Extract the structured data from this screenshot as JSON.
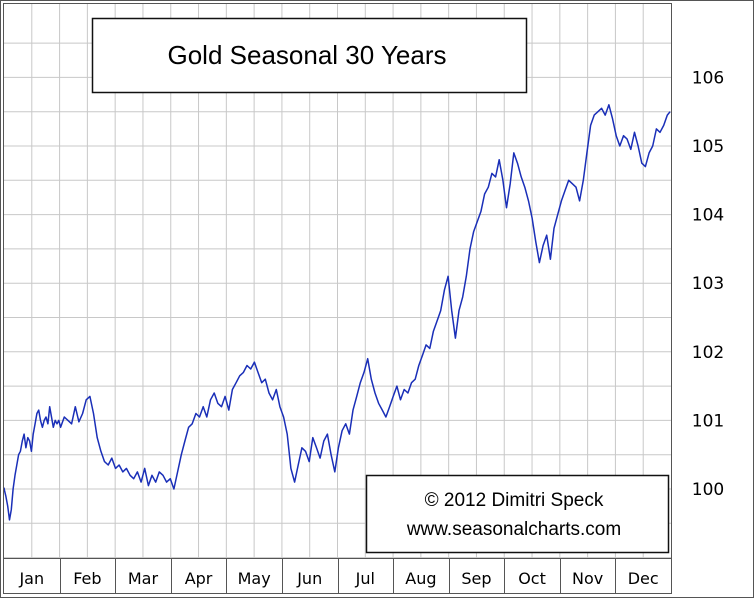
{
  "chart_data": {
    "type": "line",
    "title": "Gold Seasonal 30 Years",
    "credit_line1": "© 2012  Dimitri Speck",
    "credit_line2": "www.seasonalcharts.com",
    "months": [
      "Jan",
      "Feb",
      "Mar",
      "Apr",
      "May",
      "Jun",
      "Jul",
      "Aug",
      "Sep",
      "Oct",
      "Nov",
      "Dec"
    ],
    "ylim": [
      99,
      106.8
    ],
    "yticks": [
      100,
      101,
      102,
      103,
      104,
      105,
      106
    ],
    "grid": true,
    "line_color": "#1a2fb8",
    "series": [
      {
        "x": [
          0,
          0.3,
          1,
          2,
          3,
          4,
          5,
          6,
          7,
          8,
          9,
          10,
          11,
          12,
          13,
          14,
          15,
          16,
          17,
          18,
          19,
          20,
          21,
          22,
          23,
          24,
          25,
          26,
          27,
          28,
          29,
          30,
          31,
          33,
          35,
          37,
          39,
          41,
          43,
          45,
          47,
          49,
          51,
          53,
          55,
          57,
          59,
          61,
          63,
          65,
          67,
          69,
          71,
          73,
          75,
          77,
          79,
          81,
          83,
          85,
          87,
          89,
          91,
          93,
          95,
          97,
          99,
          101,
          103,
          105,
          107,
          109,
          111,
          113,
          115,
          117,
          119,
          121,
          123,
          125,
          127,
          129,
          131,
          133,
          135,
          137,
          139,
          141,
          143,
          145,
          147,
          149,
          151,
          153,
          155,
          157,
          159,
          161,
          163,
          165,
          167,
          169,
          171,
          173,
          175,
          177,
          179,
          181,
          183,
          185,
          187,
          189,
          191,
          193,
          195,
          197,
          199,
          201,
          203,
          205,
          207,
          209,
          211,
          213,
          215,
          217,
          219,
          221,
          223,
          225,
          227,
          229,
          231,
          233,
          235,
          237,
          239,
          241,
          243,
          245,
          247,
          249,
          251,
          253,
          255,
          257,
          259,
          261,
          263,
          265,
          267,
          269,
          271,
          273,
          275,
          277,
          279,
          281,
          283,
          285,
          287,
          289,
          291,
          293,
          295,
          297,
          299,
          301,
          303,
          305,
          307,
          309,
          311,
          313,
          315,
          317,
          319,
          321,
          323,
          325,
          327,
          329,
          331,
          333,
          335,
          337,
          339,
          341,
          343,
          345,
          347,
          349,
          351,
          353,
          355,
          357,
          359,
          361,
          363,
          364.5
        ],
        "y": [
          100.02,
          99.98,
          99.9,
          99.75,
          99.55,
          99.7,
          100.0,
          100.2,
          100.35,
          100.5,
          100.55,
          100.7,
          100.8,
          100.6,
          100.75,
          100.7,
          100.55,
          100.8,
          100.95,
          101.1,
          101.15,
          101.0,
          100.9,
          101.0,
          101.05,
          100.95,
          101.2,
          101.05,
          100.9,
          101.0,
          100.95,
          101.0,
          100.9,
          101.05,
          101.0,
          100.95,
          101.2,
          100.98,
          101.1,
          101.3,
          101.35,
          101.1,
          100.75,
          100.55,
          100.4,
          100.35,
          100.45,
          100.3,
          100.35,
          100.25,
          100.3,
          100.2,
          100.15,
          100.25,
          100.1,
          100.3,
          100.05,
          100.2,
          100.1,
          100.25,
          100.2,
          100.1,
          100.15,
          100.0,
          100.25,
          100.5,
          100.7,
          100.9,
          100.95,
          101.1,
          101.05,
          101.2,
          101.05,
          101.3,
          101.4,
          101.25,
          101.2,
          101.35,
          101.15,
          101.45,
          101.55,
          101.65,
          101.7,
          101.8,
          101.75,
          101.85,
          101.7,
          101.55,
          101.6,
          101.4,
          101.3,
          101.45,
          101.2,
          101.05,
          100.8,
          100.3,
          100.1,
          100.35,
          100.6,
          100.55,
          100.4,
          100.75,
          100.6,
          100.45,
          100.7,
          100.8,
          100.5,
          100.25,
          100.6,
          100.85,
          100.95,
          100.8,
          101.15,
          101.35,
          101.55,
          101.7,
          101.9,
          101.6,
          101.4,
          101.25,
          101.15,
          101.05,
          101.2,
          101.35,
          101.5,
          101.3,
          101.45,
          101.4,
          101.55,
          101.6,
          101.8,
          101.95,
          102.1,
          102.05,
          102.3,
          102.45,
          102.6,
          102.9,
          103.1,
          102.6,
          102.2,
          102.6,
          102.8,
          103.1,
          103.5,
          103.75,
          103.9,
          104.05,
          104.3,
          104.4,
          104.6,
          104.55,
          104.8,
          104.5,
          104.1,
          104.45,
          104.9,
          104.75,
          104.55,
          104.4,
          104.2,
          103.95,
          103.6,
          103.3,
          103.55,
          103.7,
          103.35,
          103.8,
          104.0,
          104.2,
          104.35,
          104.5,
          104.45,
          104.4,
          104.2,
          104.5,
          104.9,
          105.3,
          105.45,
          105.5,
          105.55,
          105.45,
          105.6,
          105.4,
          105.15,
          105.0,
          105.15,
          105.1,
          104.95,
          105.2,
          105.0,
          104.75,
          104.7,
          104.9,
          105.0,
          105.25,
          105.2,
          105.3,
          105.45,
          105.5
        ]
      }
    ]
  }
}
